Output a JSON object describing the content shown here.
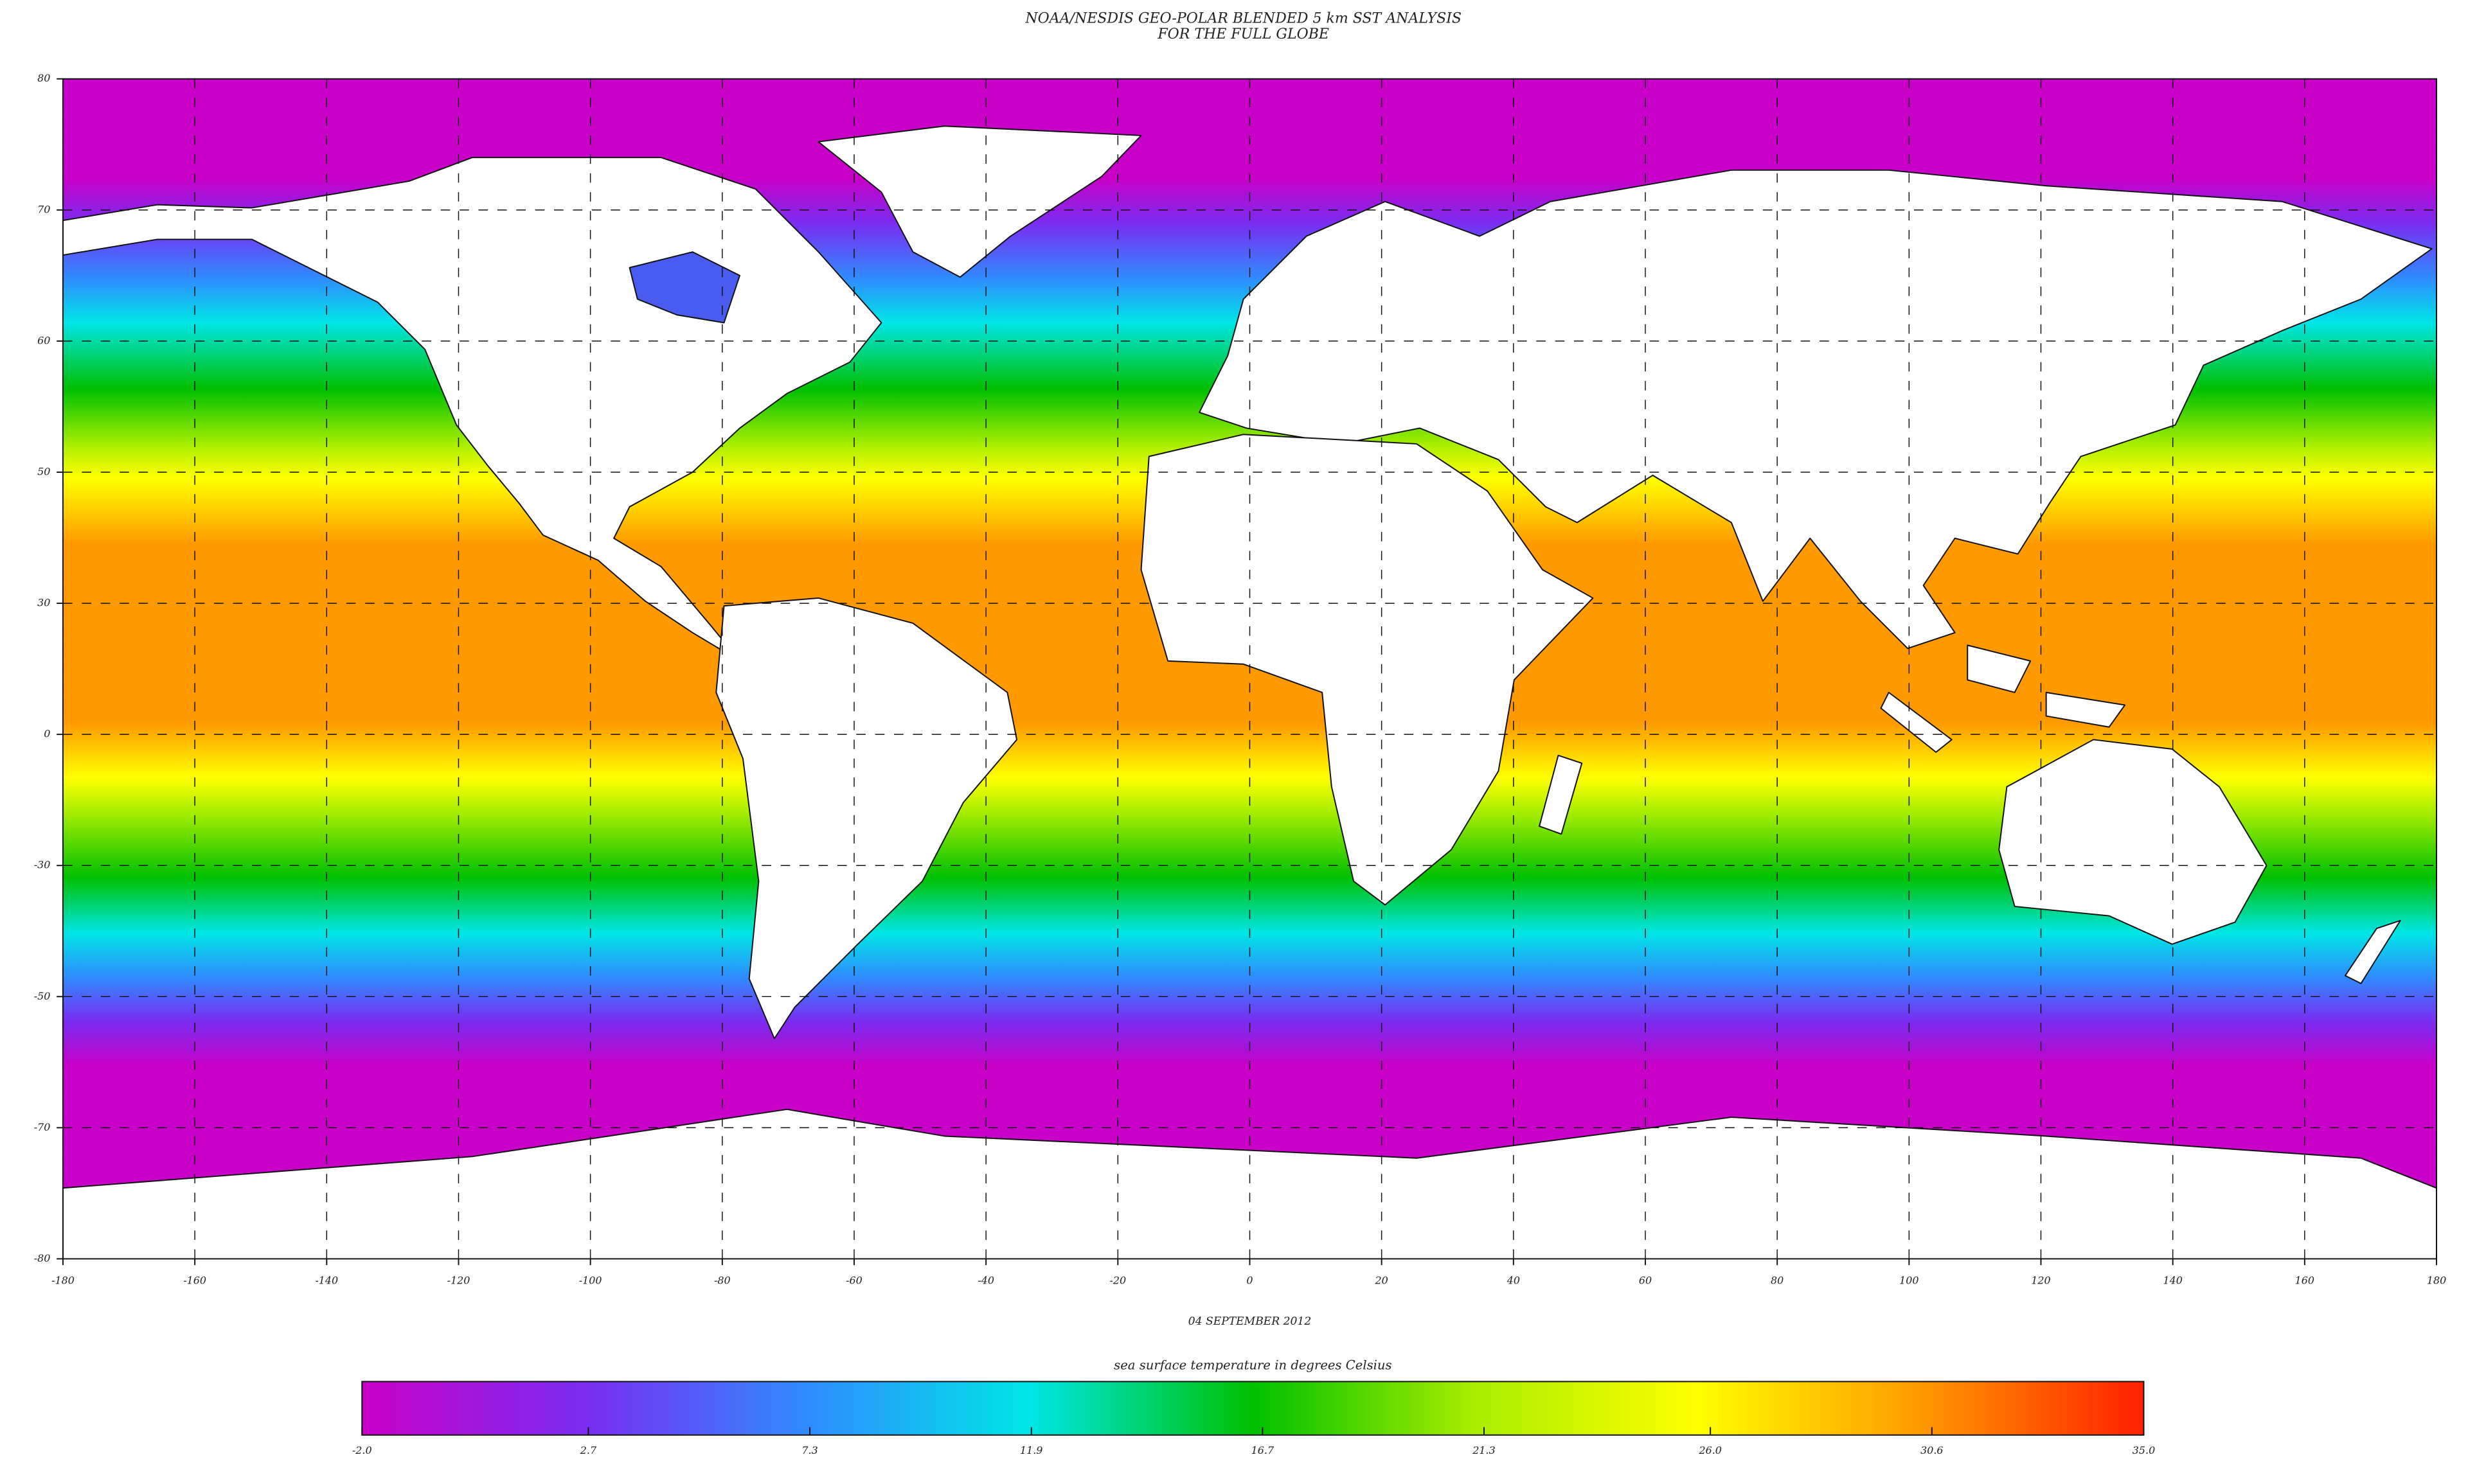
{
  "chart_data": {
    "type": "map",
    "title": "NOAA/NESDIS GEO-POLAR BLENDED 5 km SST ANALYSIS",
    "subtitle": "FOR THE FULL GLOBE",
    "date": "04 SEPTEMBER 2012",
    "xlim": [
      -180,
      180
    ],
    "xticks": [
      -180,
      -160,
      -140,
      -120,
      -100,
      -80,
      -60,
      -40,
      -20,
      0,
      20,
      40,
      60,
      80,
      100,
      120,
      140,
      160,
      180
    ],
    "lat_labels": [
      80,
      70,
      60,
      50,
      30,
      0,
      -30,
      -50,
      -70,
      -80
    ],
    "grid": true,
    "colorbar": {
      "label": "sea surface temperature in degrees Celsius",
      "lim": [
        -2,
        35
      ],
      "ticks": [
        {
          "value": -2,
          "label": "-2.0"
        },
        2.7,
        7.3,
        11.9,
        16.7,
        21.3,
        {
          "value": 26,
          "label": "26.0"
        },
        30.6,
        {
          "value": 35,
          "label": "35.0"
        }
      ],
      "colors": [
        "#c800c8",
        "#7a2cf0",
        "#2f8cff",
        "#00e6e6",
        "#00c000",
        "#aaee00",
        "#ffff00",
        "#ff9900",
        "#ff2000"
      ]
    }
  }
}
